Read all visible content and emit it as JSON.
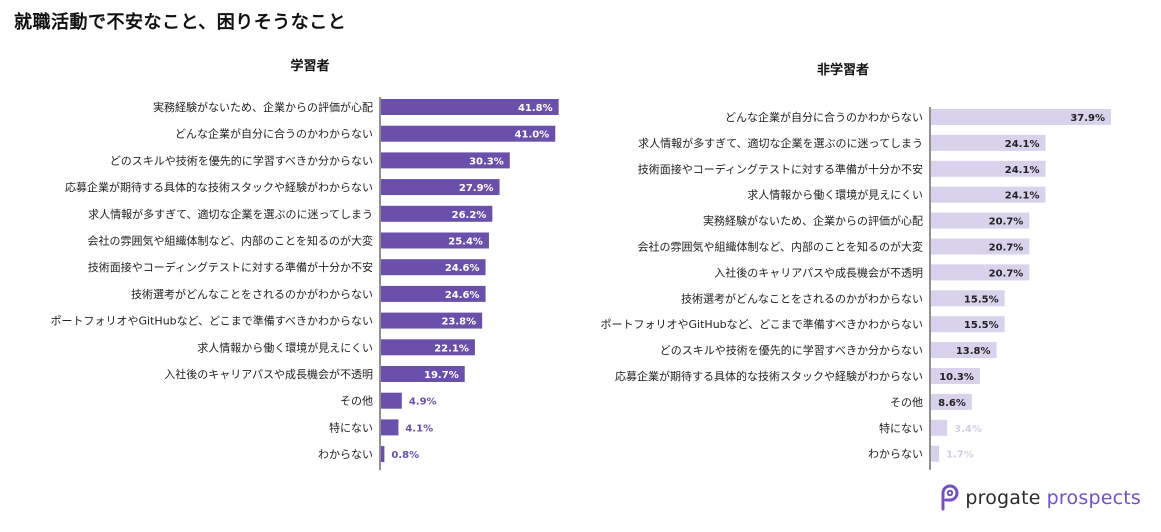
{
  "title": "就職活動で不安なこと、困りそうなこと",
  "brand": {
    "word1": "progate",
    "word2": "prospects",
    "icon": "progate-logo-icon"
  },
  "colors": {
    "student": "#6a4fab",
    "non_student": "#d9d2ec",
    "non_student_small_label": "#d5cfe4"
  },
  "chart_data": [
    {
      "type": "bar",
      "orientation": "horizontal",
      "title": "学習者",
      "unit": "%",
      "categories": [
        "実務経験がないため、企業からの評価が心配",
        "どんな企業が自分に合うのかわからない",
        "どのスキルや技術を優先的に学習すべきか分からない",
        "応募企業が期待する具体的な技術スタックや経験がわからない",
        "求人情報が多すぎて、適切な企業を選ぶのに迷ってしまう",
        "会社の雰囲気や組織体制など、内部のことを知るのが大変",
        "技術面接やコーディングテストに対する準備が十分か不安",
        "技術選考がどんなことをされるのかがわからない",
        "ポートフォリオやGitHubなど、どこまで準備すべきかわからない",
        "求人情報から働く環境が見えにくい",
        "入社後のキャリアパスや成長機会が不透明",
        "その他",
        "特にない",
        "わからない"
      ],
      "values": [
        41.8,
        41.0,
        30.3,
        27.9,
        26.2,
        25.4,
        24.6,
        24.6,
        23.8,
        22.1,
        19.7,
        4.9,
        4.1,
        0.8
      ],
      "labels": [
        "41.8%",
        "41.0%",
        "30.3%",
        "27.9%",
        "26.2%",
        "25.4%",
        "24.6%",
        "24.6%",
        "23.8%",
        "22.1%",
        "19.7%",
        "4.9%",
        "4.1%",
        "0.8%"
      ]
    },
    {
      "type": "bar",
      "orientation": "horizontal",
      "title": "非学習者",
      "unit": "%",
      "categories": [
        "どんな企業が自分に合うのかわからない",
        "求人情報が多すぎて、適切な企業を選ぶのに迷ってしまう",
        "技術面接やコーディングテストに対する準備が十分か不安",
        "求人情報から働く環境が見えにくい",
        "実務経験がないため、企業からの評価が心配",
        "会社の雰囲気や組織体制など、内部のことを知るのが大変",
        "入社後のキャリアパスや成長機会が不透明",
        "技術選考がどんなことをされるのかがわからない",
        "ポートフォリオやGitHubなど、どこまで準備すべきかわからない",
        "どのスキルや技術を優先的に学習すべきか分からない",
        "応募企業が期待する具体的な技術スタックや経験がわからない",
        "その他",
        "特にない",
        "わからない"
      ],
      "values": [
        37.9,
        24.1,
        24.1,
        24.1,
        20.7,
        20.7,
        20.7,
        15.5,
        15.5,
        13.8,
        10.3,
        8.6,
        3.4,
        1.7
      ],
      "labels": [
        "37.9%",
        "24.1%",
        "24.1%",
        "24.1%",
        "20.7%",
        "20.7%",
        "20.7%",
        "15.5%",
        "15.5%",
        "13.8%",
        "10.3%",
        "8.6%",
        "3.4%",
        "1.7%"
      ]
    }
  ]
}
